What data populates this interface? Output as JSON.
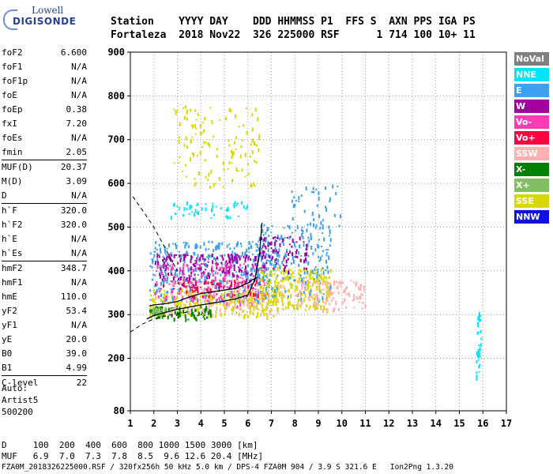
{
  "logo": {
    "line1": "Lowell",
    "line2": "DIGISONDE"
  },
  "header": {
    "line1": "Station    YYYY DAY    DDD HHMMSS P1  FFS S  AXN PPS IGA PS",
    "line2": "Fortaleza  2018 Nov22  326 225000 RSF      1 714 100 10+ 11"
  },
  "params": [
    {
      "name": "foF2",
      "value": "6.600"
    },
    {
      "name": "foF1",
      "value": "N/A"
    },
    {
      "name": "foF1p",
      "value": "N/A"
    },
    {
      "name": "foE",
      "value": "N/A"
    },
    {
      "name": "foEp",
      "value": "0.38"
    },
    {
      "name": "fxI",
      "value": "7.20"
    },
    {
      "name": "foEs",
      "value": "N/A"
    },
    {
      "name": "fmin",
      "value": "2.05",
      "sep_after": true
    },
    {
      "name": "MUF(D)",
      "value": "20.37"
    },
    {
      "name": "M(D)",
      "value": "3.09"
    },
    {
      "name": "D",
      "value": "N/A",
      "sep_after": true
    },
    {
      "name": "h`F",
      "value": "320.0"
    },
    {
      "name": "h`F2",
      "value": "320.0"
    },
    {
      "name": "h`E",
      "value": "N/A"
    },
    {
      "name": "h`Es",
      "value": "N/A",
      "sep_after": true
    },
    {
      "name": "hmF2",
      "value": "348.7"
    },
    {
      "name": "hmF1",
      "value": "N/A"
    },
    {
      "name": "hmE",
      "value": "110.0"
    },
    {
      "name": "yF2",
      "value": "53.4"
    },
    {
      "name": "yF1",
      "value": "N/A"
    },
    {
      "name": "yE",
      "value": "20.0"
    },
    {
      "name": "B0",
      "value": "39.0"
    },
    {
      "name": "B1",
      "value": "4.99",
      "sep_after": true
    },
    {
      "name": "C-level",
      "value": "22"
    }
  ],
  "auto": {
    "line1": "Auto:",
    "line2": "Artist5",
    "line3": "500200"
  },
  "legend": [
    {
      "label": "NoVal",
      "color": "#808080"
    },
    {
      "label": "NNE",
      "color": "#00e5ff"
    },
    {
      "label": "E",
      "color": "#3fa0f0"
    },
    {
      "label": "W",
      "color": "#a000a0"
    },
    {
      "label": "Vo-",
      "color": "#ff3cb4"
    },
    {
      "label": "Vo+",
      "color": "#ff0040"
    },
    {
      "label": "SSW",
      "color": "#ffb0b0"
    },
    {
      "label": "X-",
      "color": "#008000"
    },
    {
      "label": "X+",
      "color": "#80c060"
    },
    {
      "label": "SSE",
      "color": "#d8d800"
    },
    {
      "label": "NNW",
      "color": "#1010e0"
    }
  ],
  "footer": {
    "line1": "D     100  200  400  600  800 1000 1500 3000 [km]",
    "line2": "MUF   6.9  7.0  7.3  7.8  8.5  9.6 12.6 20.4 [MHz]",
    "line3": "FZA0M_2018326225000.RSF / 320fx256h 50 kHz 5.0 km / DPS-4 FZA0M 904 / 3.9 S 321.6 E   Ion2Png 1.3.20"
  },
  "chart_data": {
    "type": "scatter",
    "xlim": [
      1,
      17
    ],
    "ylim": [
      80,
      900
    ],
    "x_ticks": [
      1,
      2,
      3,
      4,
      5,
      6,
      7,
      8,
      9,
      10,
      11,
      12,
      13,
      14,
      15,
      16,
      17
    ],
    "y_ticks": [
      80,
      200,
      300,
      400,
      500,
      600,
      700,
      800,
      900
    ],
    "grid": "dotted",
    "legend_placement": "right",
    "profile_curve": {
      "x": [
        1.7,
        2.0,
        2.5,
        3.0,
        3.5,
        4.0,
        4.5,
        5.0,
        5.5,
        6.0,
        6.3,
        6.5,
        6.6
      ],
      "y": [
        290,
        298,
        305,
        312,
        317,
        322,
        326,
        331,
        336,
        345,
        380,
        440,
        510
      ]
    },
    "trace_line": {
      "x": [
        1.8,
        2.0,
        2.5,
        3.0,
        3.5,
        4.0,
        4.5,
        5.0,
        5.5,
        6.0,
        6.2,
        6.4
      ],
      "y": [
        320,
        322,
        325,
        330,
        340,
        348,
        352,
        356,
        360,
        372,
        380,
        385
      ]
    },
    "dashed_upper": {
      "x": [
        1.1,
        1.5,
        2.0,
        2.5,
        3.0
      ],
      "y": [
        570,
        540,
        500,
        450,
        400
      ]
    },
    "dashed_lower": {
      "x": [
        1.0,
        1.5,
        2.0,
        2.5,
        3.0,
        3.5
      ],
      "y": [
        260,
        278,
        290,
        297,
        302,
        306
      ]
    },
    "echo_clusters": [
      {
        "color_idx": 9,
        "x": [
          1.8,
          7.2
        ],
        "y": [
          295,
          360
        ],
        "n": 300
      },
      {
        "color_idx": 2,
        "x": [
          1.8,
          7.0
        ],
        "y": [
          330,
          470
        ],
        "n": 380
      },
      {
        "color_idx": 3,
        "x": [
          2.0,
          6.5
        ],
        "y": [
          360,
          440
        ],
        "n": 220
      },
      {
        "color_idx": 4,
        "x": [
          2.0,
          6.8
        ],
        "y": [
          320,
          420
        ],
        "n": 160
      },
      {
        "color_idx": 7,
        "x": [
          1.8,
          4.5
        ],
        "y": [
          290,
          320
        ],
        "n": 90
      },
      {
        "color_idx": 6,
        "x": [
          2.5,
          7.5
        ],
        "y": [
          300,
          380
        ],
        "n": 160
      },
      {
        "color_idx": 9,
        "x": [
          6.5,
          9.5
        ],
        "y": [
          310,
          410
        ],
        "n": 260
      },
      {
        "color_idx": 2,
        "x": [
          6.3,
          9.5
        ],
        "y": [
          330,
          510
        ],
        "n": 220
      },
      {
        "color_idx": 3,
        "x": [
          6.5,
          8.5
        ],
        "y": [
          400,
          480
        ],
        "n": 80
      },
      {
        "color_idx": 6,
        "x": [
          8.0,
          11.0
        ],
        "y": [
          310,
          380
        ],
        "n": 120
      },
      {
        "color_idx": 9,
        "x": [
          2.8,
          6.5
        ],
        "y": [
          590,
          780
        ],
        "n": 130
      },
      {
        "color_idx": 1,
        "x": [
          2.5,
          6.0
        ],
        "y": [
          520,
          560
        ],
        "n": 50
      },
      {
        "color_idx": 8,
        "x": [
          1.9,
          2.5
        ],
        "y": [
          300,
          320
        ],
        "n": 40
      },
      {
        "color_idx": 5,
        "x": [
          3.0,
          6.5
        ],
        "y": [
          340,
          380
        ],
        "n": 60
      },
      {
        "color_idx": 1,
        "x": [
          15.7,
          15.9
        ],
        "y": [
          150,
          320
        ],
        "n": 40
      },
      {
        "color_idx": 2,
        "x": [
          7.8,
          10.0
        ],
        "y": [
          500,
          600
        ],
        "n": 40
      }
    ]
  }
}
